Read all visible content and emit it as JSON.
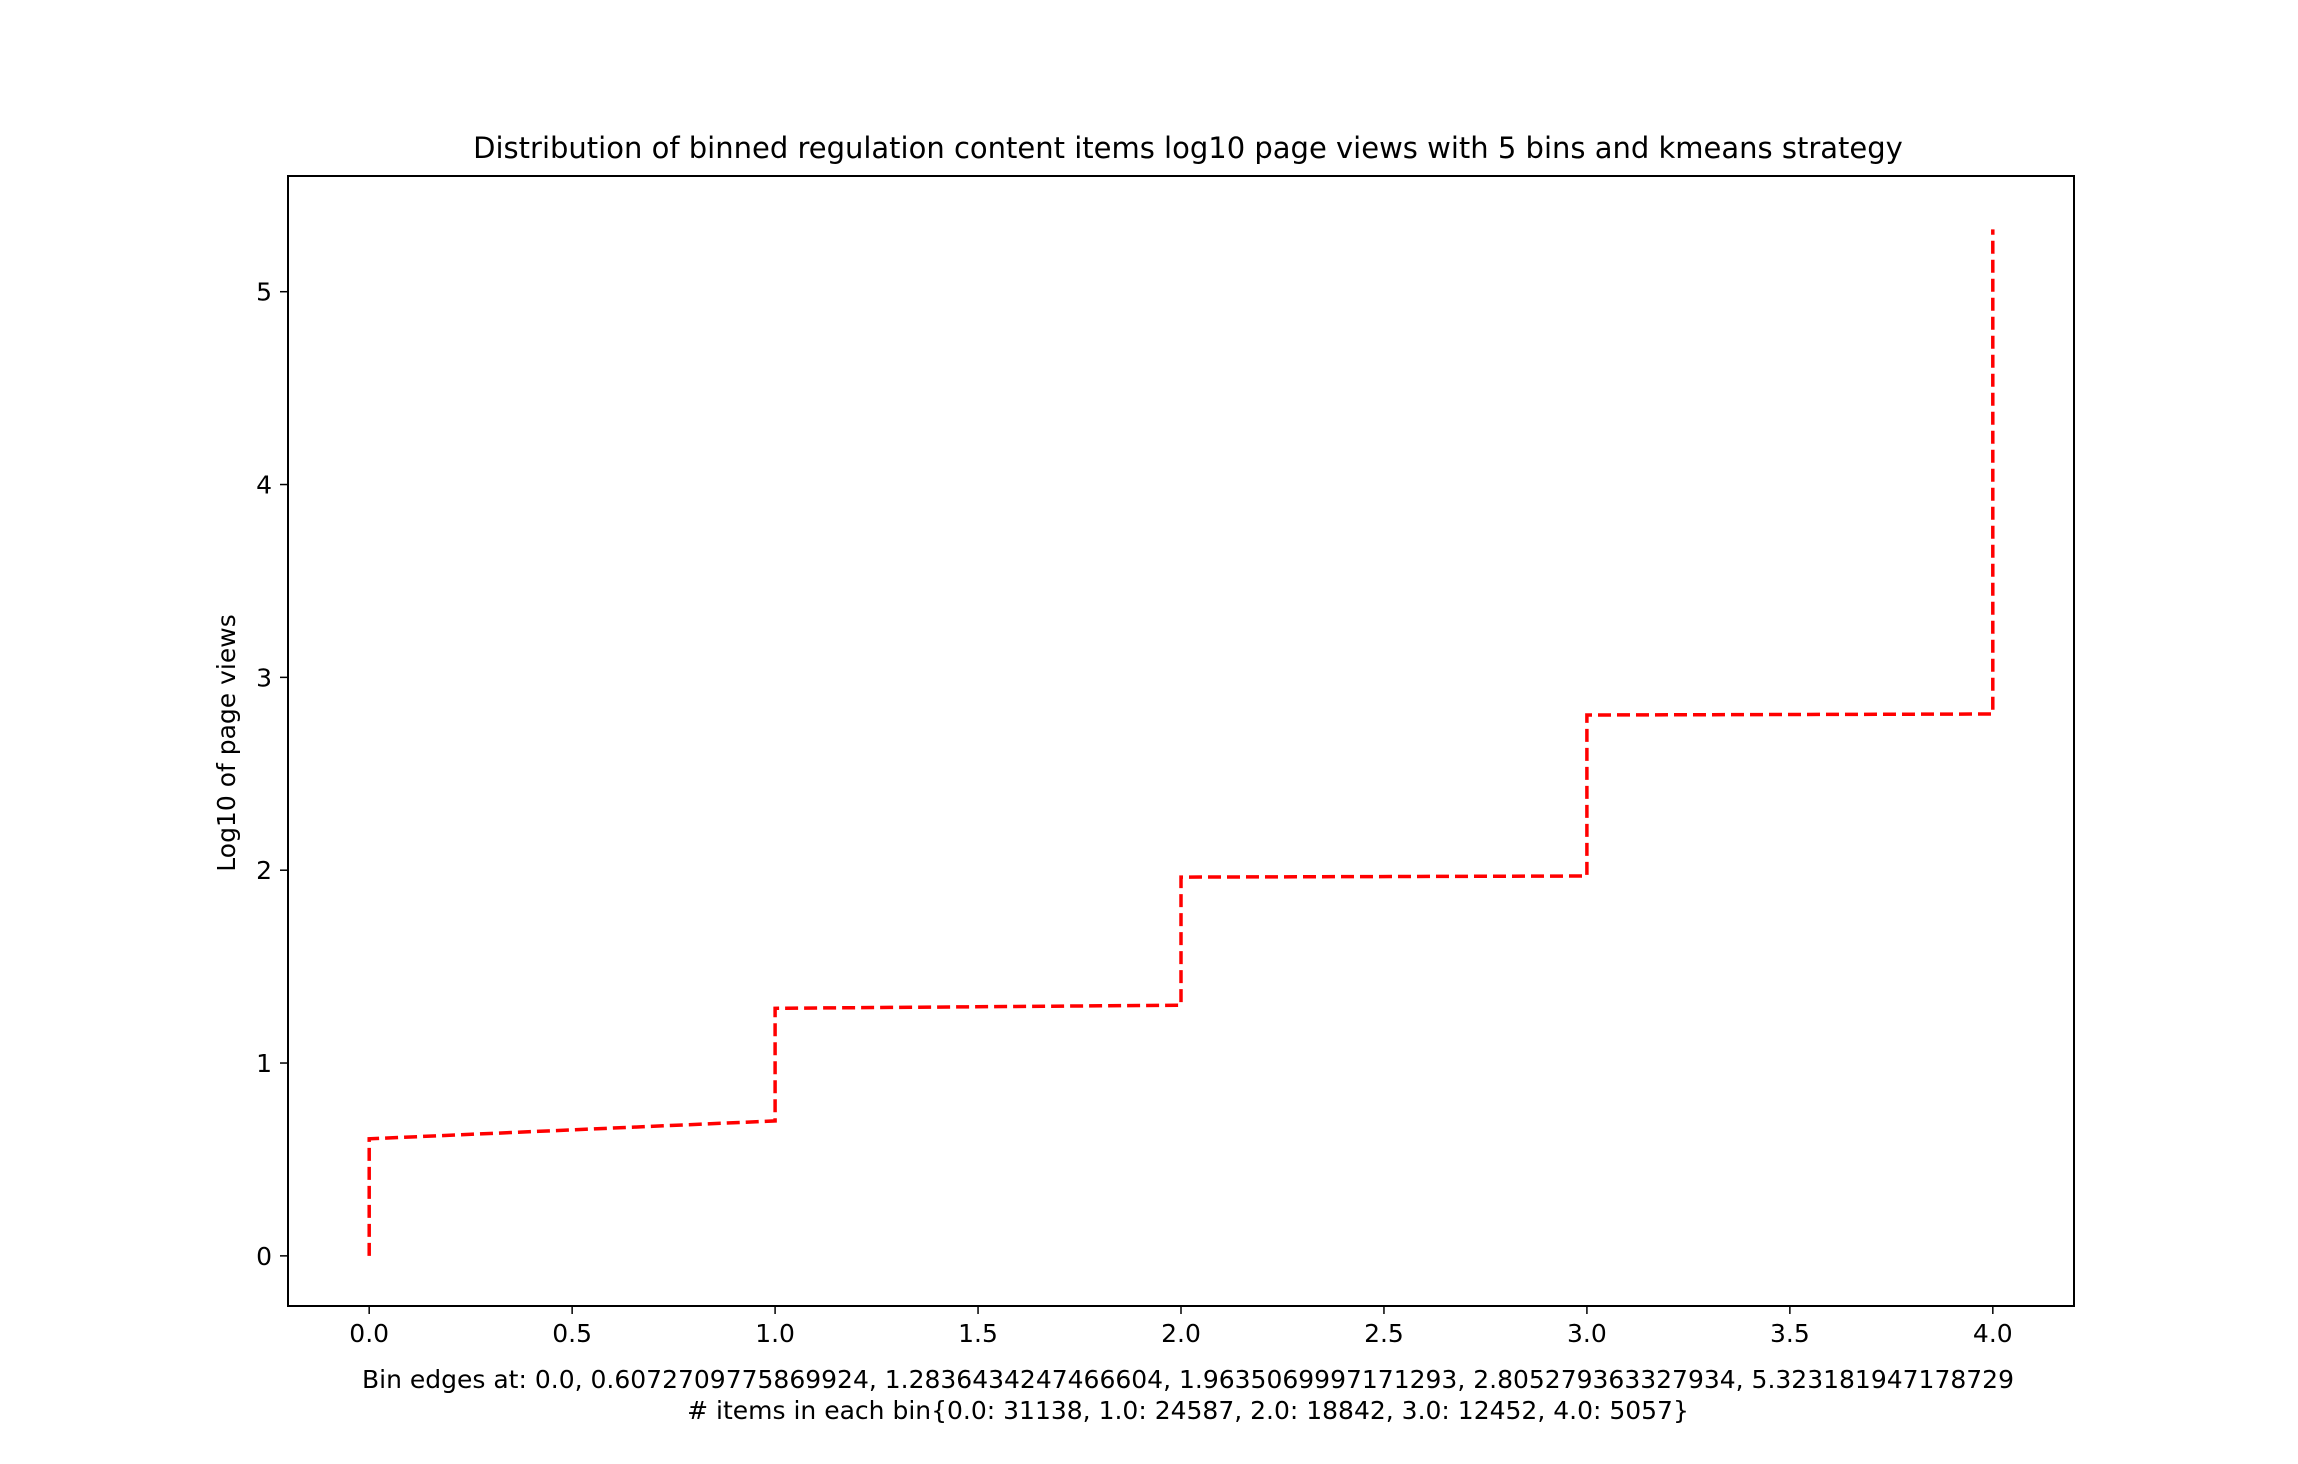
{
  "chart_data": {
    "type": "line",
    "title": "Distribution of binned regulation content items log10 page views with 5 bins and kmeans strategy",
    "xlabel_lines": [
      "Bin edges at: 0.0, 0.6072709775869924, 1.2836434247466604, 1.9635069997171293, 2.805279363327934, 5.323181947178729",
      "# items in each bin{0.0: 31138, 1.0: 24587, 2.0: 18842, 3.0: 12452, 4.0: 5057}"
    ],
    "ylabel": "Log10 of page views",
    "xlim": [
      -0.2,
      4.2
    ],
    "ylim": [
      -0.26,
      5.6
    ],
    "x_ticks": [
      0.0,
      0.5,
      1.0,
      1.5,
      2.0,
      2.5,
      3.0,
      3.5,
      4.0
    ],
    "x_tick_labels": [
      "0.0",
      "0.5",
      "1.0",
      "1.5",
      "2.0",
      "2.5",
      "3.0",
      "3.5",
      "4.0"
    ],
    "y_ticks": [
      0,
      1,
      2,
      3,
      4,
      5
    ],
    "y_tick_labels": [
      "0",
      "1",
      "2",
      "3",
      "4",
      "5"
    ],
    "grid": false,
    "series": [
      {
        "color": "#ff0000",
        "line_style": "dashed",
        "points": [
          {
            "x": 0.0,
            "y": 0.0
          },
          {
            "x": 0.0,
            "y": 0.607
          },
          {
            "x": 1.0,
            "y": 0.7
          },
          {
            "x": 1.0,
            "y": 1.284
          },
          {
            "x": 2.0,
            "y": 1.3
          },
          {
            "x": 2.0,
            "y": 1.964
          },
          {
            "x": 3.0,
            "y": 1.97
          },
          {
            "x": 3.0,
            "y": 2.805
          },
          {
            "x": 4.0,
            "y": 2.81
          },
          {
            "x": 4.0,
            "y": 5.323
          }
        ]
      }
    ]
  }
}
